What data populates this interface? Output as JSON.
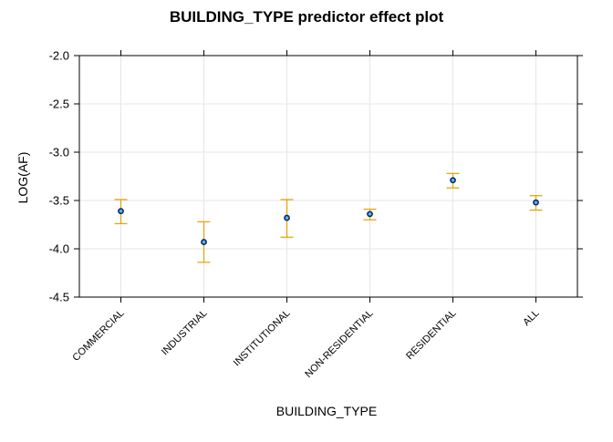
{
  "chart_data": {
    "type": "scatter",
    "title": "BUILDING_TYPE predictor effect plot",
    "xlabel": "BUILDING_TYPE",
    "ylabel": "LOG(AF)",
    "categories": [
      "COMMERCIAL",
      "INDUSTRIAL",
      "INSTITUTIONAL",
      "NON-RESIDENTIAL",
      "RESIDENTIAL",
      "ALL"
    ],
    "values": [
      -3.61,
      -3.93,
      -3.68,
      -3.64,
      -3.29,
      -3.52
    ],
    "lower": [
      -3.74,
      -4.14,
      -3.88,
      -3.7,
      -3.37,
      -3.6
    ],
    "upper": [
      -3.49,
      -3.72,
      -3.49,
      -3.59,
      -3.22,
      -3.45
    ],
    "ylim": [
      -4.5,
      -2.0
    ],
    "yticks": [
      -4.5,
      -4.0,
      -3.5,
      -3.0,
      -2.5,
      -2.0
    ],
    "ytick_labels": [
      "-4.5",
      "-4.0",
      "-3.5",
      "-3.0",
      "-2.5",
      "-2.0"
    ],
    "grid": true,
    "colors": {
      "point_fill": "#56B4E9",
      "point_edge": "#0a2a6a",
      "error_bar": "#E69F00",
      "grid": "#e6e6e6"
    }
  }
}
